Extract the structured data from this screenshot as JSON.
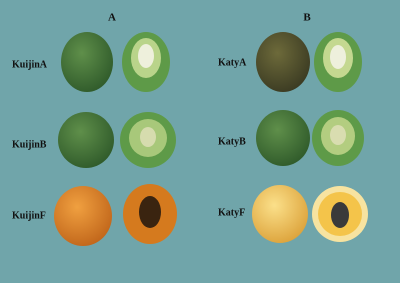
{
  "panels": [
    {
      "title": "A",
      "samples": [
        "KuijinA",
        "KuijinB",
        "KuijinF"
      ]
    },
    {
      "title": "B",
      "samples": [
        "KatyA",
        "KatyB",
        "KatyF"
      ]
    }
  ]
}
